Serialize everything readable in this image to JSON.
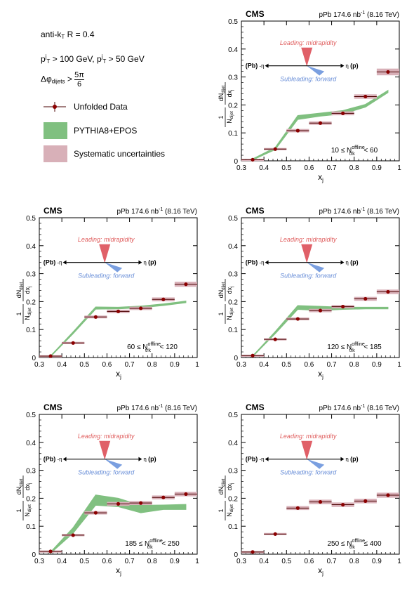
{
  "legend": {
    "algo": "anti-k",
    "algo_sub": "T",
    "algo_radius": " R = 0.4",
    "pt1_p": "p",
    "pt1_sup": "j",
    "pt1_sub": "T",
    "pt1_cut": " > 100 GeV, ",
    "pt2_p": "p",
    "pt2_sup": "j",
    "pt2_sub": "T",
    "pt2_cut": " > 50 GeV",
    "dphi_prefix": "Δφ",
    "dphi_sub": "dijets",
    "dphi_gt": " > ",
    "dphi_num": "5π",
    "dphi_den": "6",
    "data_label": "Unfolded Data",
    "model_label": "PYTHIA8+EPOS",
    "syst_label": "Systematic uncertainties"
  },
  "colors": {
    "data_marker": "#8b0000",
    "data_edge": "#4a0000",
    "model_band": "#80c080",
    "syst_box": "#d8b0b8",
    "leading_text": "#e06060",
    "leading_cone": "#e06068",
    "subleading_text": "#6a8fd8",
    "subleading_cone": "#7a9fe0"
  },
  "common": {
    "cms_label": "CMS",
    "lumi": "pPb 174.6 nb",
    "lumi_sup": "-1",
    "energy": " (8.16 TeV)",
    "xlabel": "x",
    "xlabel_sub": "j",
    "ylabel_frac_num": "1",
    "ylabel_ndijet": "N",
    "ylabel_ndijet_sub": "dijet",
    "ylabel_dn": "dN",
    "ylabel_dn_sub": "dijet",
    "ylabel_dxj": "dx",
    "ylabel_dxj_sub": "j",
    "leading_text": "Leading: midrapidity",
    "subleading_text": "Subleading: forward",
    "pb_label": "(Pb)",
    "minus_eta": "-η",
    "eta_p": "η",
    "p_label": "(p)",
    "xticks": [
      "0.3",
      "0.4",
      "0.5",
      "0.6",
      "0.7",
      "0.8",
      "0.9",
      "1"
    ],
    "yticks": [
      "0",
      "0.1",
      "0.2",
      "0.3",
      "0.4",
      "0.5"
    ]
  },
  "chart_data": [
    {
      "type": "scatter",
      "xlim": [
        0.3,
        1.0
      ],
      "ylim": [
        0,
        0.5
      ],
      "multiplicity_label": {
        "low": "10",
        "op_low": " ≤ ",
        "N": "N",
        "sup": "offline",
        "sub": "trk",
        "op_high": " < ",
        "high": "60"
      },
      "x": [
        0.35,
        0.45,
        0.55,
        0.65,
        0.75,
        0.85,
        0.95
      ],
      "values": [
        0.004,
        0.042,
        0.108,
        0.135,
        0.17,
        0.23,
        0.318
      ],
      "syst": [
        0.003,
        0.004,
        0.006,
        0.006,
        0.007,
        0.008,
        0.012
      ],
      "model_x": [
        0.35,
        0.45,
        0.55,
        0.65,
        0.75,
        0.85,
        0.95
      ],
      "model_lo": [
        0.003,
        0.04,
        0.148,
        0.16,
        0.168,
        0.192,
        0.244
      ],
      "model_hi": [
        0.007,
        0.048,
        0.162,
        0.171,
        0.18,
        0.202,
        0.252
      ]
    },
    {
      "type": "scatter",
      "xlim": [
        0.3,
        1.0
      ],
      "ylim": [
        0,
        0.5
      ],
      "multiplicity_label": {
        "low": "60",
        "op_low": " ≤ ",
        "N": "N",
        "sup": "offline",
        "sub": "trk",
        "op_high": " < ",
        "high": "120"
      },
      "x": [
        0.35,
        0.45,
        0.55,
        0.65,
        0.75,
        0.85,
        0.95
      ],
      "values": [
        0.005,
        0.052,
        0.145,
        0.165,
        0.176,
        0.208,
        0.262
      ],
      "syst": [
        0.003,
        0.004,
        0.005,
        0.006,
        0.006,
        0.007,
        0.009
      ],
      "model_x": [
        0.35,
        0.45,
        0.55,
        0.65,
        0.75,
        0.85,
        0.95
      ],
      "model_lo": [
        0.003,
        0.085,
        0.173,
        0.174,
        0.178,
        0.186,
        0.196
      ],
      "model_hi": [
        0.006,
        0.092,
        0.181,
        0.18,
        0.184,
        0.192,
        0.202
      ]
    },
    {
      "type": "scatter",
      "xlim": [
        0.3,
        1.0
      ],
      "ylim": [
        0,
        0.5
      ],
      "multiplicity_label": {
        "low": "120",
        "op_low": " ≤ ",
        "N": "N",
        "sup": "offline",
        "sub": "trk",
        "op_high": " < ",
        "high": "185"
      },
      "x": [
        0.35,
        0.45,
        0.55,
        0.65,
        0.75,
        0.85,
        0.95
      ],
      "values": [
        0.007,
        0.065,
        0.138,
        0.168,
        0.182,
        0.21,
        0.235
      ],
      "syst": [
        0.003,
        0.004,
        0.005,
        0.006,
        0.006,
        0.007,
        0.008
      ],
      "model_x": [
        0.35,
        0.45,
        0.55,
        0.65,
        0.75,
        0.85,
        0.95
      ],
      "model_lo": [
        0.003,
        0.085,
        0.172,
        0.168,
        0.172,
        0.174,
        0.174
      ],
      "model_hi": [
        0.006,
        0.093,
        0.186,
        0.183,
        0.18,
        0.18,
        0.18
      ]
    },
    {
      "type": "scatter",
      "xlim": [
        0.3,
        1.0
      ],
      "ylim": [
        0,
        0.5
      ],
      "multiplicity_label": {
        "low": "185",
        "op_low": " ≤ ",
        "N": "N",
        "sup": "offline",
        "sub": "trk",
        "op_high": " < ",
        "high": "250"
      },
      "x": [
        0.35,
        0.45,
        0.55,
        0.65,
        0.75,
        0.85,
        0.95
      ],
      "values": [
        0.01,
        0.068,
        0.148,
        0.18,
        0.183,
        0.203,
        0.215
      ],
      "syst": [
        0.003,
        0.004,
        0.006,
        0.007,
        0.007,
        0.007,
        0.008
      ],
      "model_x": [
        0.35,
        0.45,
        0.55,
        0.65,
        0.75,
        0.85,
        0.95
      ],
      "model_lo": [
        0.003,
        0.075,
        0.175,
        0.17,
        0.148,
        0.16,
        0.16
      ],
      "model_hi": [
        0.008,
        0.095,
        0.212,
        0.2,
        0.175,
        0.176,
        0.178
      ]
    },
    {
      "type": "scatter",
      "xlim": [
        0.3,
        1.0
      ],
      "ylim": [
        0,
        0.5
      ],
      "multiplicity_label": {
        "low": "250",
        "op_low": " ≤ ",
        "N": "N",
        "sup": "offline",
        "sub": "trk",
        "op_high": " ≤ ",
        "high": "400"
      },
      "x": [
        0.35,
        0.45,
        0.55,
        0.65,
        0.75,
        0.85,
        0.95
      ],
      "values": [
        0.008,
        0.072,
        0.165,
        0.187,
        0.177,
        0.19,
        0.211
      ],
      "syst": [
        0.003,
        0.004,
        0.007,
        0.008,
        0.008,
        0.008,
        0.009
      ]
    }
  ]
}
